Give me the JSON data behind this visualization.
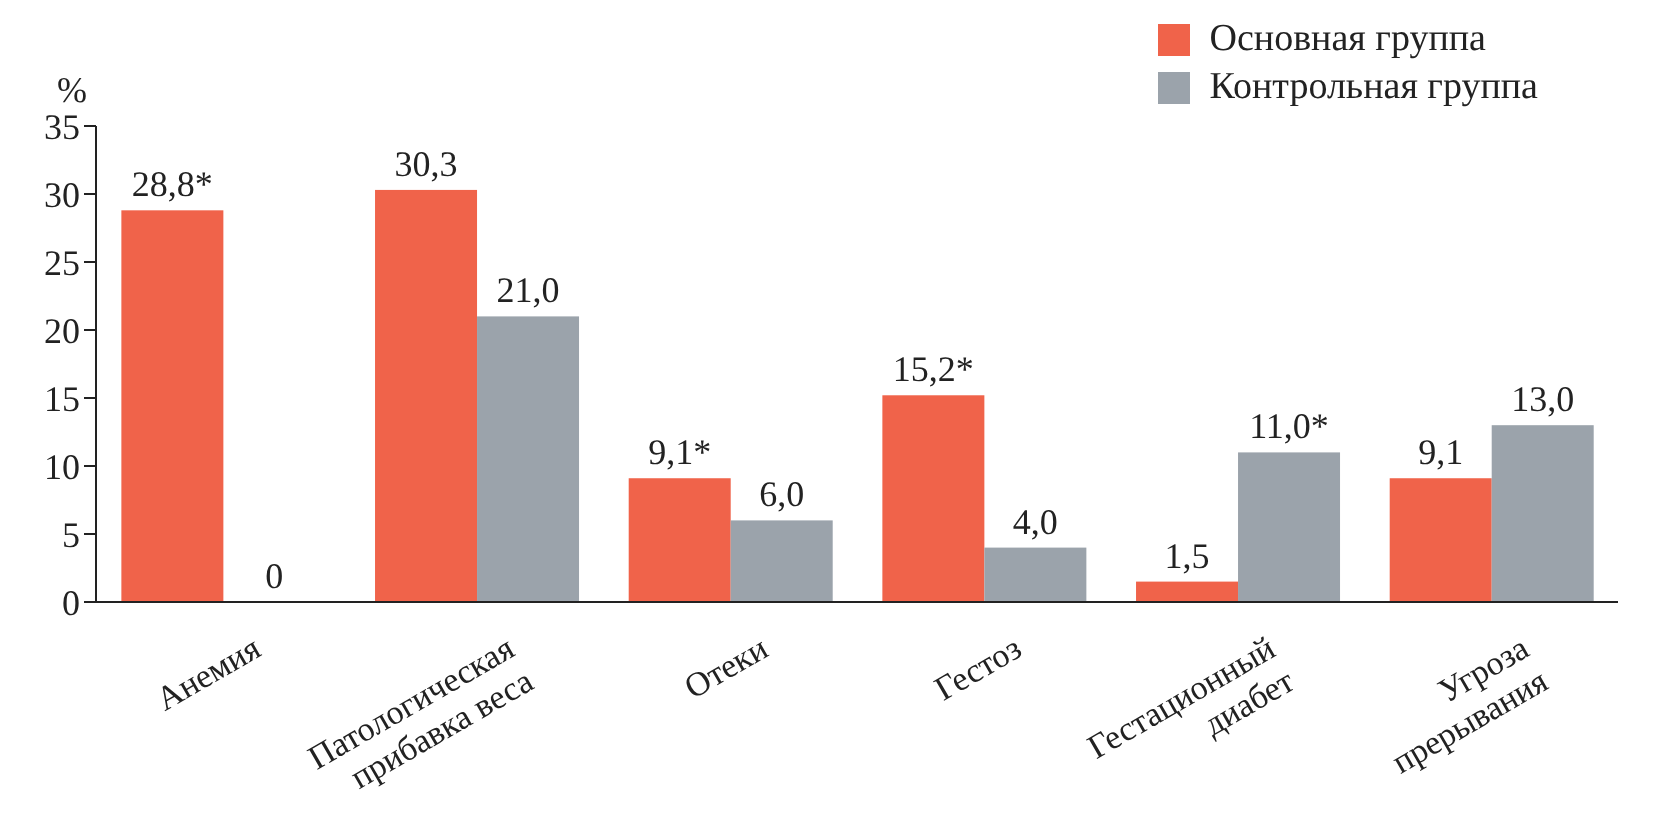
{
  "chart_data": {
    "type": "bar",
    "ylabel": "%",
    "categories": [
      "Анемия",
      "Патологическая прибавка веса",
      "Отеки",
      "Гестоз",
      "Гестационный диабет",
      "Угроза прерывания"
    ],
    "series": [
      {
        "name": "Основная группа",
        "color": "#f0634a",
        "values": [
          28.8,
          30.3,
          9.1,
          15.2,
          1.5,
          9.1
        ],
        "value_labels": [
          "28,8*",
          "30,3",
          "9,1*",
          "15,2*",
          "1,5",
          "9,1"
        ]
      },
      {
        "name": "Контрольная группа",
        "color": "#9ba3ab",
        "values": [
          0,
          21.0,
          6.0,
          4.0,
          11.0,
          13.0
        ],
        "value_labels": [
          "0",
          "21,0",
          "6,0",
          "4,0",
          "11,0*",
          "13,0"
        ]
      }
    ],
    "ylim": [
      0,
      35
    ],
    "yticks": [
      0,
      5,
      10,
      15,
      20,
      25,
      30,
      35
    ],
    "grid": false,
    "legend": "top right"
  }
}
